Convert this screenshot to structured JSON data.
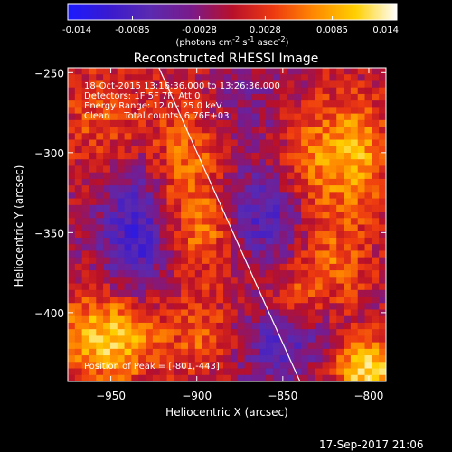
{
  "colorbar": {
    "colors": [
      "#1a1aff",
      "#3a1ad0",
      "#5a2ab0",
      "#7a1a8a",
      "#b8102a",
      "#ee3a10",
      "#ff8a00",
      "#ffd000",
      "#ffffff"
    ],
    "range": [
      -0.014,
      0.014
    ],
    "ticks": [
      "-0.014",
      "-0.0085",
      "-0.0028",
      "0.0028",
      "0.0085",
      "0.014"
    ],
    "unit_html": "(photons cm<tspan dy=\"-4\" font-size=\"8\">-2</tspan><tspan dy=\"4\"> s</tspan><tspan dy=\"-4\" font-size=\"8\">-1</tspan><tspan dy=\"4\"> asec</tspan><tspan dy=\"-4\" font-size=\"8\">-2</tspan><tspan dy=\"4\">)</tspan>"
  },
  "annotations": {
    "line1": "18-Oct-2015 13:16:36.000 to 13:26:36.000",
    "line2": "Detectors: 1F 5F 7F, Att 0",
    "line3": "Energy Range: 12.0 - 25.0 keV",
    "line4": "Clean     Total counts: 6.76E+03",
    "peak": "Position of Peak = [-801,-443]"
  },
  "footer": {
    "timestamp": "17-Sep-2017 21:06"
  },
  "chart_data": {
    "type": "heatmap",
    "title": "Reconstructed RHESSI Image",
    "xlabel": "Heliocentric X (arcsec)",
    "ylabel": "Heliocentric Y (arcsec)",
    "xlim": [
      -975,
      -790
    ],
    "ylim": [
      -443,
      -247
    ],
    "xticks": [
      -950,
      -900,
      -850,
      -800
    ],
    "yticks": [
      -400,
      -350,
      -300,
      -250
    ],
    "value_range": [
      -0.014,
      0.014
    ],
    "peak_position": [
      -801,
      -443
    ],
    "limb_line": [
      [
        -922,
        -247
      ],
      [
        -840,
        -443
      ]
    ],
    "grid_resolution": [
      45,
      48
    ],
    "blobs": [
      {
        "x": -950,
        "y": -415,
        "amp": 0.012,
        "sx": 22,
        "sy": 20
      },
      {
        "x": -905,
        "y": -310,
        "amp": 0.007,
        "sx": 16,
        "sy": 40
      },
      {
        "x": -890,
        "y": -350,
        "amp": 0.006,
        "sx": 14,
        "sy": 18
      },
      {
        "x": -895,
        "y": -415,
        "amp": 0.005,
        "sx": 12,
        "sy": 18
      },
      {
        "x": -955,
        "y": -280,
        "amp": 0.005,
        "sx": 18,
        "sy": 25
      },
      {
        "x": -830,
        "y": -305,
        "amp": 0.007,
        "sx": 16,
        "sy": 28
      },
      {
        "x": -805,
        "y": -300,
        "amp": 0.008,
        "sx": 12,
        "sy": 25
      },
      {
        "x": -820,
        "y": -370,
        "amp": 0.006,
        "sx": 15,
        "sy": 20
      },
      {
        "x": -845,
        "y": -390,
        "amp": 0.005,
        "sx": 10,
        "sy": 12
      },
      {
        "x": -801,
        "y": -435,
        "amp": 0.013,
        "sx": 14,
        "sy": 14
      },
      {
        "x": -935,
        "y": -350,
        "amp": -0.009,
        "sx": 15,
        "sy": 30
      },
      {
        "x": -865,
        "y": -340,
        "amp": -0.008,
        "sx": 20,
        "sy": 20
      },
      {
        "x": -850,
        "y": -420,
        "amp": -0.006,
        "sx": 18,
        "sy": 18
      },
      {
        "x": -875,
        "y": -270,
        "amp": -0.003,
        "sx": 20,
        "sy": 20
      }
    ]
  }
}
